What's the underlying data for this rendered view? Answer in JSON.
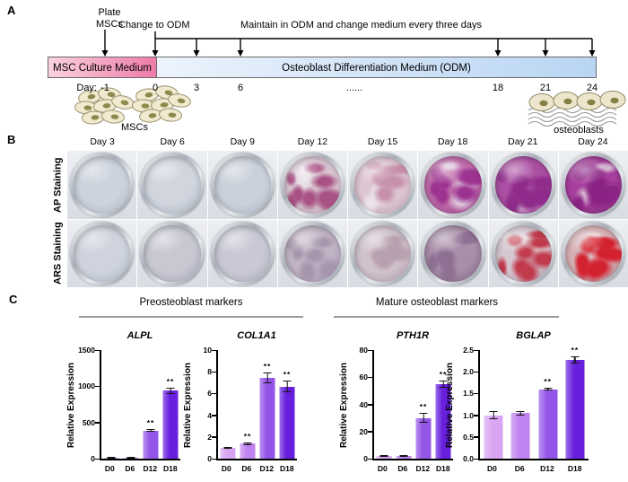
{
  "panelA": {
    "label": "A",
    "plate_label_line1": "Plate",
    "plate_label_line2": "MSCs",
    "change_label": "Change to ODM",
    "maintain_label": "Maintain in ODM and change medium every three days",
    "msc_medium": "MSC Culture Medium",
    "odm_medium": "Osteoblast Differentiation Medium (ODM)",
    "day_prefix": "Day:",
    "days": [
      "-1",
      "0",
      "3",
      "6",
      "......",
      "18",
      "21",
      "24"
    ],
    "mscs_caption": "MSCs",
    "osteoblasts_caption": "osteoblasts",
    "msc_box_colors": [
      "#fad2df",
      "#ee7ba8"
    ],
    "odm_box_colors": [
      "#ecf3fc",
      "#b9d5f3"
    ]
  },
  "panelB": {
    "label": "B",
    "columns": [
      "Day 3",
      "Day 6",
      "Day 9",
      "Day 12",
      "Day 15",
      "Day 18",
      "Day 21",
      "Day 24"
    ],
    "rows": [
      {
        "label": "AP Staining",
        "wells": [
          {
            "base": "#cdd3dd",
            "deep": "#aeb6c2"
          },
          {
            "base": "#d0d5de",
            "deep": "#a9b1bd"
          },
          {
            "base": "#cbd1db",
            "deep": "#adb4c1"
          },
          {
            "base": "#d9c6d1",
            "deep": "#b39cab",
            "patch": "#a85183",
            "level": 0.5,
            "light": "#e8e0e6"
          },
          {
            "base": "#ddc5d1",
            "deep": "#bba3b1",
            "patch": "#c791ad",
            "level": 0.45,
            "light": "#ece2e8"
          },
          {
            "base": "#c06cab",
            "deep": "#8d4384",
            "patch": "#9c3390",
            "level": 0.7,
            "light": "#ddc8dc"
          },
          {
            "base": "#ab4fa2",
            "deep": "#7c3079",
            "patch": "#8f2b8a",
            "level": 0.75,
            "light": "#d8bcd6"
          },
          {
            "base": "#a83f9e",
            "deep": "#6f2469",
            "patch": "#8a2384",
            "level": 0.8,
            "light": "#d5b5d2"
          }
        ]
      },
      {
        "label": "ARS Staining",
        "wells": [
          {
            "base": "#ced3dd",
            "deep": "#aeb5c1"
          },
          {
            "base": "#c8c8d3",
            "deep": "#a6a6b4"
          },
          {
            "base": "#c9c9d5",
            "deep": "#a8a8b6"
          },
          {
            "base": "#c0b3c4",
            "deep": "#9c8ca1",
            "patch": "#a695ad",
            "level": 0.3
          },
          {
            "base": "#d0c2cc",
            "deep": "#ab97a5",
            "patch": "#b7a0af",
            "level": 0.3
          },
          {
            "base": "#a98ea9",
            "deep": "#7e6480",
            "patch": "#8e7093",
            "level": 0.5
          },
          {
            "base": "#d5c6cf",
            "deep": "#ab93a0",
            "patch": "#c13b4d",
            "level": 0.55,
            "light": "#e5dade"
          },
          {
            "base": "#d6b0b4",
            "deep": "#a4727a",
            "patch": "#d3212f",
            "level": 0.85,
            "light": "#e8d7d8"
          }
        ]
      }
    ]
  },
  "panelC": {
    "label": "C",
    "groups": [
      {
        "title": "Preosteoblast markers"
      },
      {
        "title": "Mature osteoblast markers"
      }
    ],
    "bar_palette": [
      "#d9a4f2",
      "#c183ef",
      "#9355e7",
      "#671fdd"
    ],
    "significance_symbol": "**"
  },
  "chart_data": [
    {
      "type": "bar",
      "title": "ALPL",
      "ylabel": "Relative Expression",
      "group": "Preosteoblast markers",
      "categories": [
        "D0",
        "D6",
        "D12",
        "D18"
      ],
      "values": [
        2,
        8,
        390,
        940
      ],
      "errors": [
        1,
        3,
        18,
        45
      ],
      "sig": [
        null,
        null,
        "**",
        "**"
      ],
      "ylim": [
        0,
        1500
      ],
      "yticks": [
        "0",
        "500",
        "1000",
        "1500"
      ]
    },
    {
      "type": "bar",
      "title": "COL1A1",
      "ylabel": "Relative Expression",
      "group": "Preosteoblast markers",
      "categories": [
        "D0",
        "D6",
        "D12",
        "D18"
      ],
      "values": [
        1.0,
        1.4,
        7.45,
        6.65
      ],
      "errors": [
        0.08,
        0.12,
        0.5,
        0.55
      ],
      "sig": [
        null,
        "**",
        "**",
        "**"
      ],
      "ylim": [
        0,
        10
      ],
      "yticks": [
        "0",
        "2",
        "4",
        "6",
        "8",
        "10"
      ]
    },
    {
      "type": "bar",
      "title": "PTH1R",
      "ylabel": "Relative Expression",
      "group": "Mature osteoblast markers",
      "categories": [
        "D0",
        "D6",
        "D12",
        "D18"
      ],
      "values": [
        2,
        2,
        30,
        55
      ],
      "errors": [
        0.4,
        0.4,
        3.5,
        2.5
      ],
      "sig": [
        null,
        null,
        "**",
        "**"
      ],
      "ylim": [
        0,
        80
      ],
      "yticks": [
        "0",
        "20",
        "40",
        "60",
        "80"
      ]
    },
    {
      "type": "bar",
      "title": "BGLAP",
      "ylabel": "Relative Expression",
      "group": "Mature osteoblast markers",
      "categories": [
        "D0",
        "D6",
        "D12",
        "D18"
      ],
      "values": [
        1.0,
        1.05,
        1.6,
        2.27
      ],
      "errors": [
        0.1,
        0.05,
        0.03,
        0.08
      ],
      "sig": [
        null,
        null,
        "**",
        "**"
      ],
      "ylim": [
        0,
        2.5
      ],
      "yticks": [
        "0.0",
        "0.5",
        "1.0",
        "1.5",
        "2.0",
        "2.5"
      ]
    }
  ]
}
